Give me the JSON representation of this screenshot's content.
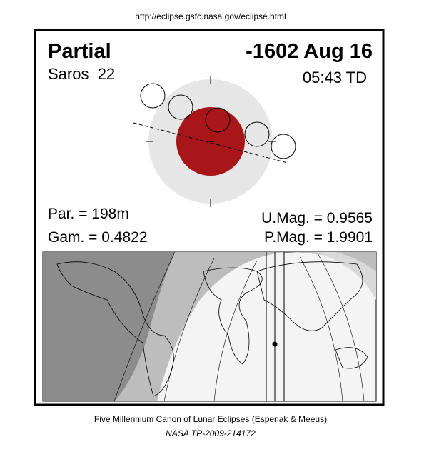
{
  "header": {
    "url": "http://eclipse.gsfc.nasa.gov/eclipse.html"
  },
  "eclipse": {
    "type": "Partial",
    "date": "-1602 Aug 16",
    "saros": "Saros  22",
    "time": "05:43 TD",
    "par": "Par. = 198m",
    "gam": "Gam. = 0.4822",
    "umag": "U.Mag. = 0.9565",
    "pmag": "P.Mag. = 1.9901"
  },
  "footer": {
    "line1": "Five Millennium Canon of Lunar Eclipses (Espenak & Meeus)",
    "line2": "NASA TP-2009-214172"
  }
}
